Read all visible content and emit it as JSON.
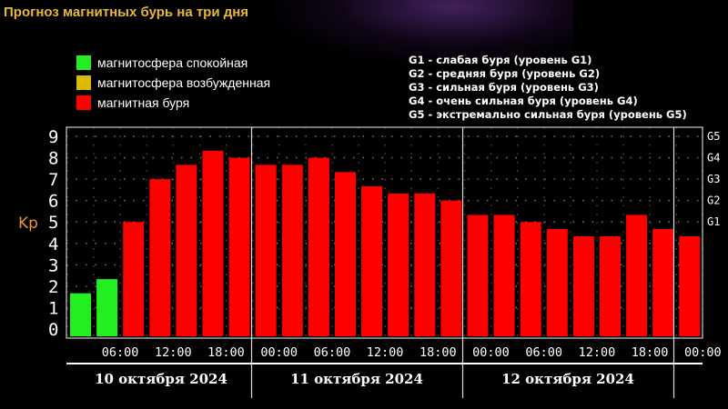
{
  "title": "Прогноз магнитных бурь на три дня",
  "legend": [
    {
      "label": "магнитосфера спокойная",
      "color": "#22ee22"
    },
    {
      "label": "магнитосфера возбужденная",
      "color": "#ddbb00"
    },
    {
      "label": "магнитная буря",
      "color": "#ff0000"
    }
  ],
  "storm_scale": [
    "G1 - слабая буря (уровень G1)",
    "G2 - средняя буря (уровень G2)",
    "G3 - сильная буря (уровень G3)",
    "G4 - очень сильная буря (уровень G4)",
    "G5 - экстремально сильная буря (уровень G5)"
  ],
  "chart_data": {
    "type": "bar",
    "ylabel": "Kp",
    "ylim": [
      0,
      9
    ],
    "yticks": [
      0,
      1,
      2,
      3,
      4,
      5,
      6,
      7,
      8,
      9
    ],
    "g_levels": [
      {
        "label": "G1",
        "kp": 5
      },
      {
        "label": "G2",
        "kp": 6
      },
      {
        "label": "G3",
        "kp": 7
      },
      {
        "label": "G4",
        "kp": 8
      },
      {
        "label": "G5",
        "kp": 9
      }
    ],
    "x_tick_labels": [
      "06:00",
      "12:00",
      "18:00",
      "00:00",
      "06:00",
      "12:00",
      "18:00",
      "00:00",
      "06:00",
      "12:00",
      "18:00",
      "00:00"
    ],
    "days": [
      "10 октября 2024",
      "11 октября 2024",
      "12 октября 2024"
    ],
    "values": [
      1.67,
      2.33,
      5.0,
      7.0,
      7.67,
      8.33,
      8.0,
      7.67,
      7.67,
      8.0,
      7.33,
      6.67,
      6.33,
      6.33,
      6.0,
      5.33,
      5.33,
      5.0,
      4.67,
      4.33,
      4.33,
      5.33,
      4.67,
      4.33
    ],
    "colors": [
      "#22ee22",
      "#22ee22",
      "#ff0000",
      "#ff0000",
      "#ff0000",
      "#ff0000",
      "#ff0000",
      "#ff0000",
      "#ff0000",
      "#ff0000",
      "#ff0000",
      "#ff0000",
      "#ff0000",
      "#ff0000",
      "#ff0000",
      "#ff0000",
      "#ff0000",
      "#ff0000",
      "#ff0000",
      "#ff0000",
      "#ff0000",
      "#ff0000",
      "#ff0000",
      "#ff0000"
    ],
    "grid": true
  }
}
